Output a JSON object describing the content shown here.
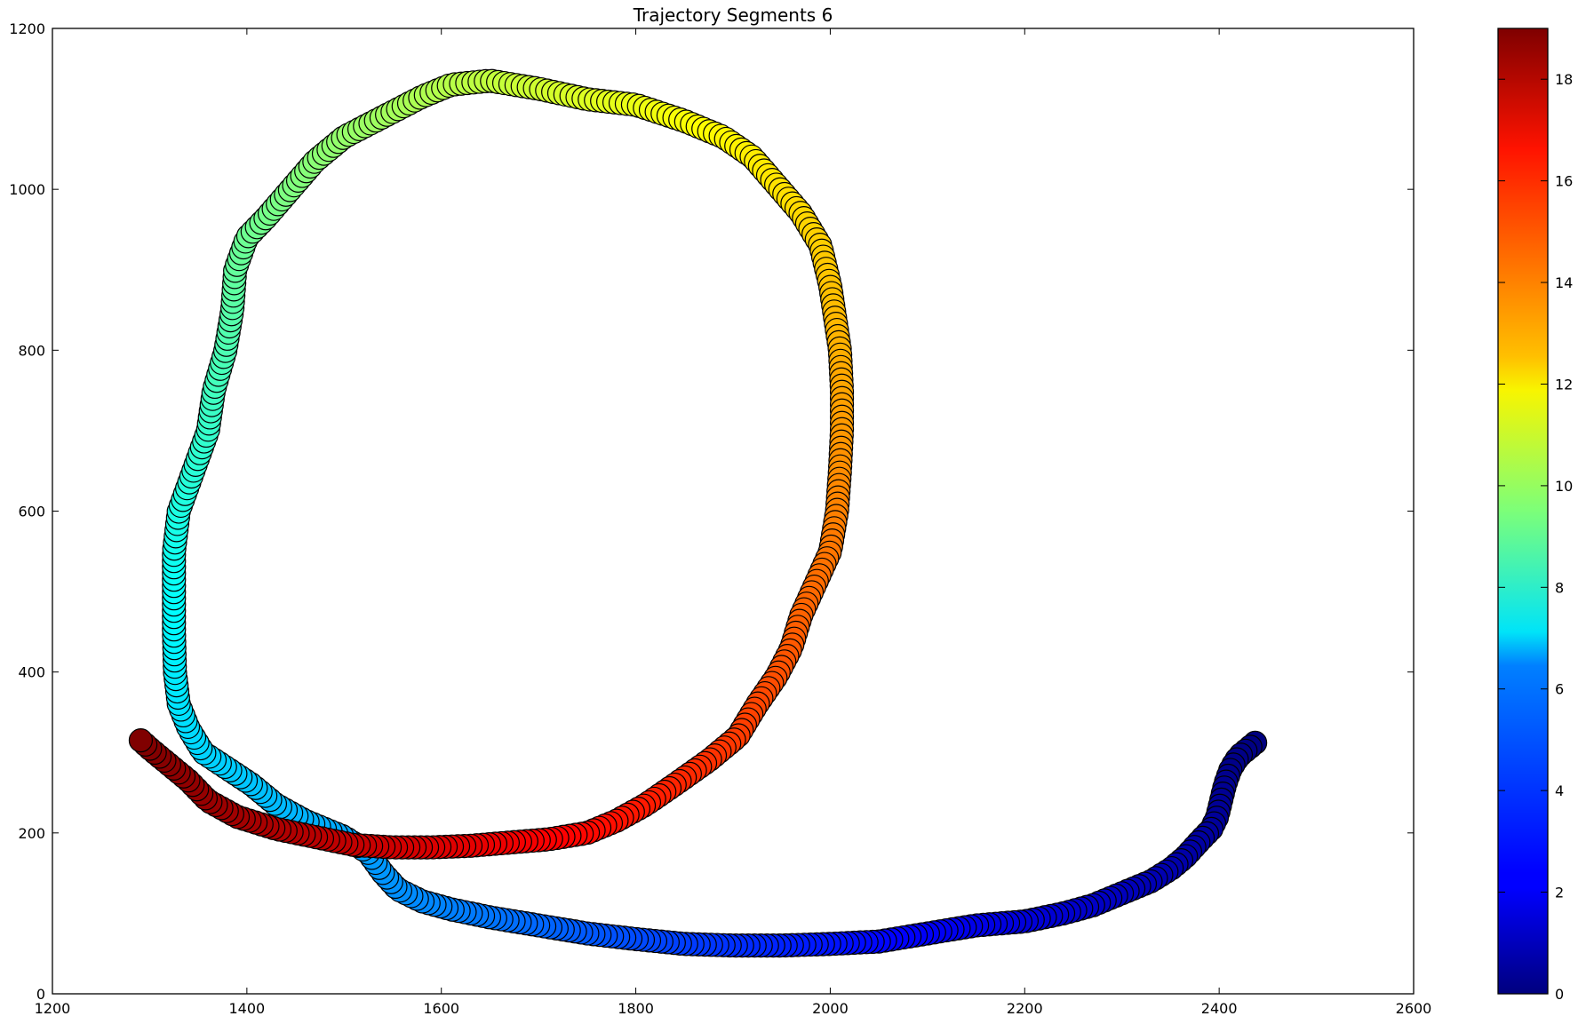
{
  "chart_data": {
    "type": "scatter",
    "title": "Trajectory Segments 6",
    "xlabel": "",
    "ylabel": "",
    "xlim": [
      1200,
      2600
    ],
    "ylim": [
      0,
      1200
    ],
    "xticks": [
      1200,
      1400,
      1600,
      1800,
      2000,
      2200,
      2400,
      2600
    ],
    "yticks": [
      0,
      200,
      400,
      600,
      800,
      1000,
      1200
    ],
    "colorbar": {
      "colormap": "jet",
      "range": [
        0,
        19
      ],
      "ticks": [
        0,
        2,
        4,
        6,
        8,
        10,
        12,
        14,
        16,
        18
      ]
    },
    "grid": false,
    "marker_size": "large",
    "path_waypoints": [
      [
        2437,
        312
      ],
      [
        2430,
        305
      ],
      [
        2420,
        295
      ],
      [
        2412,
        280
      ],
      [
        2406,
        260
      ],
      [
        2402,
        240
      ],
      [
        2398,
        220
      ],
      [
        2392,
        205
      ],
      [
        2380,
        190
      ],
      [
        2365,
        170
      ],
      [
        2350,
        155
      ],
      [
        2330,
        140
      ],
      [
        2300,
        125
      ],
      [
        2270,
        110
      ],
      [
        2240,
        100
      ],
      [
        2200,
        90
      ],
      [
        2150,
        85
      ],
      [
        2100,
        75
      ],
      [
        2050,
        65
      ],
      [
        2000,
        62
      ],
      [
        1950,
        60
      ],
      [
        1900,
        60
      ],
      [
        1850,
        62
      ],
      [
        1800,
        68
      ],
      [
        1750,
        75
      ],
      [
        1700,
        85
      ],
      [
        1650,
        95
      ],
      [
        1610,
        105
      ],
      [
        1580,
        115
      ],
      [
        1555,
        130
      ],
      [
        1540,
        150
      ],
      [
        1525,
        175
      ],
      [
        1500,
        195
      ],
      [
        1460,
        215
      ],
      [
        1430,
        235
      ],
      [
        1405,
        260
      ],
      [
        1380,
        280
      ],
      [
        1355,
        300
      ],
      [
        1340,
        330
      ],
      [
        1330,
        360
      ],
      [
        1326,
        400
      ],
      [
        1325,
        450
      ],
      [
        1325,
        500
      ],
      [
        1325,
        550
      ],
      [
        1330,
        600
      ],
      [
        1345,
        650
      ],
      [
        1360,
        700
      ],
      [
        1366,
        750
      ],
      [
        1378,
        800
      ],
      [
        1385,
        850
      ],
      [
        1388,
        900
      ],
      [
        1400,
        940
      ],
      [
        1420,
        965
      ],
      [
        1445,
        1000
      ],
      [
        1470,
        1035
      ],
      [
        1500,
        1065
      ],
      [
        1540,
        1090
      ],
      [
        1580,
        1115
      ],
      [
        1610,
        1130
      ],
      [
        1650,
        1135
      ],
      [
        1700,
        1125
      ],
      [
        1750,
        1112
      ],
      [
        1800,
        1105
      ],
      [
        1850,
        1085
      ],
      [
        1890,
        1065
      ],
      [
        1920,
        1040
      ],
      [
        1945,
        1005
      ],
      [
        1970,
        970
      ],
      [
        1990,
        930
      ],
      [
        2000,
        880
      ],
      [
        2005,
        840
      ],
      [
        2010,
        800
      ],
      [
        2012,
        750
      ],
      [
        2012,
        700
      ],
      [
        2010,
        650
      ],
      [
        2007,
        600
      ],
      [
        2000,
        550
      ],
      [
        1985,
        510
      ],
      [
        1970,
        470
      ],
      [
        1960,
        430
      ],
      [
        1945,
        395
      ],
      [
        1925,
        360
      ],
      [
        1905,
        320
      ],
      [
        1875,
        290
      ],
      [
        1840,
        260
      ],
      [
        1810,
        235
      ],
      [
        1780,
        215
      ],
      [
        1750,
        200
      ],
      [
        1710,
        192
      ],
      [
        1670,
        188
      ],
      [
        1630,
        184
      ],
      [
        1590,
        182
      ],
      [
        1550,
        182
      ],
      [
        1510,
        185
      ],
      [
        1470,
        195
      ],
      [
        1430,
        205
      ],
      [
        1390,
        220
      ],
      [
        1360,
        240
      ],
      [
        1340,
        265
      ],
      [
        1320,
        285
      ],
      [
        1300,
        305
      ],
      [
        1290,
        316
      ]
    ]
  }
}
